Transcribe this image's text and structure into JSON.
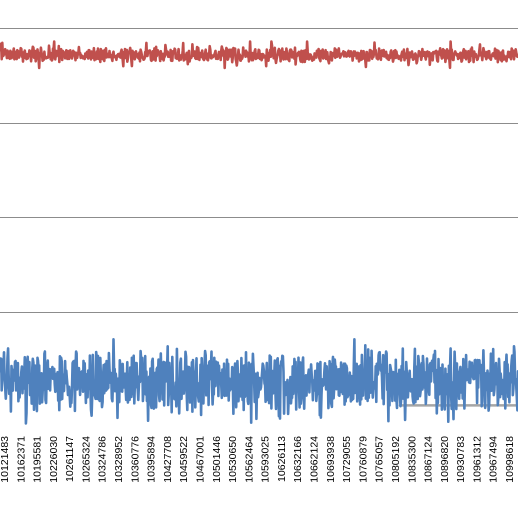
{
  "chart_data": {
    "type": "line",
    "title": "",
    "xlabel": "",
    "ylabel": "",
    "grid": true,
    "legend": "none",
    "x_range": [
      10121800,
      11000000
    ],
    "tick_labels": [
      "10121483",
      "10162371",
      "10195581",
      "10226030",
      "10261147",
      "10265324",
      "10324786",
      "10328952",
      "10360776",
      "10395894",
      "10427708",
      "10459522",
      "10467001",
      "10501446",
      "10530650",
      "10562464",
      "10593025",
      "10626113",
      "10632166",
      "10662124",
      "10693938",
      "10729055",
      "10760879",
      "10765057",
      "10805192",
      "10835300",
      "10867124",
      "10896820",
      "10930783",
      "10961312",
      "10967494",
      "10998618"
    ],
    "ylim": [
      -0.25,
      4.3
    ],
    "y_gridlines": [
      1,
      2,
      3,
      4
    ],
    "series": [
      {
        "color": "#c0504d",
        "noise_seed": 7,
        "level_range": [
          3.58,
          3.86
        ],
        "typical_band": [
          3.66,
          3.78
        ]
      },
      {
        "color": "#4f81bd",
        "noise_seed": 3,
        "level_range": [
          -0.18,
          0.71
        ],
        "typical_band": [
          0.0,
          0.55
        ]
      }
    ],
    "extra_series_fragment": {
      "color": "#a5a5a5",
      "x_range": [
        10800000,
        11000000
      ],
      "level": 0.01
    }
  }
}
